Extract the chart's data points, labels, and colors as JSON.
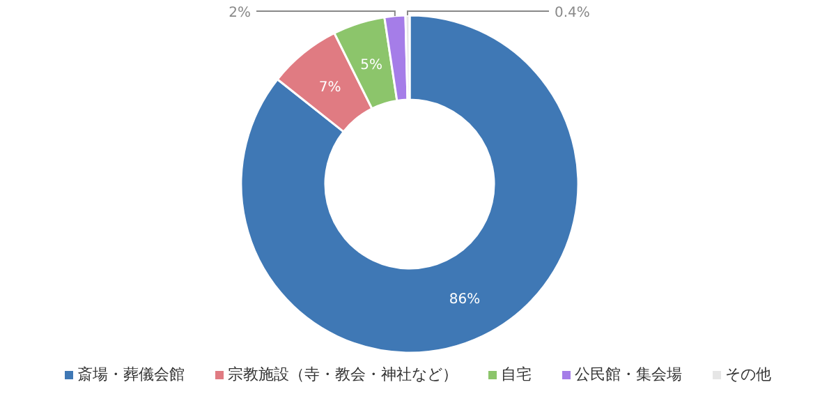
{
  "chart_data": {
    "type": "donut",
    "categories": [
      "斎場・葬儀会館",
      "宗教施設（寺・教会・神社など）",
      "自宅",
      "公民館・集会場",
      "その他"
    ],
    "values": [
      86,
      7,
      5,
      2,
      0.4
    ],
    "colors": [
      "#3f78b5",
      "#e07b82",
      "#8cc56b",
      "#a57de8",
      "#e6e6e6"
    ],
    "value_labels": [
      "86%",
      "7%",
      "5%",
      "2%",
      "0.4%"
    ],
    "legend": "bottom"
  }
}
